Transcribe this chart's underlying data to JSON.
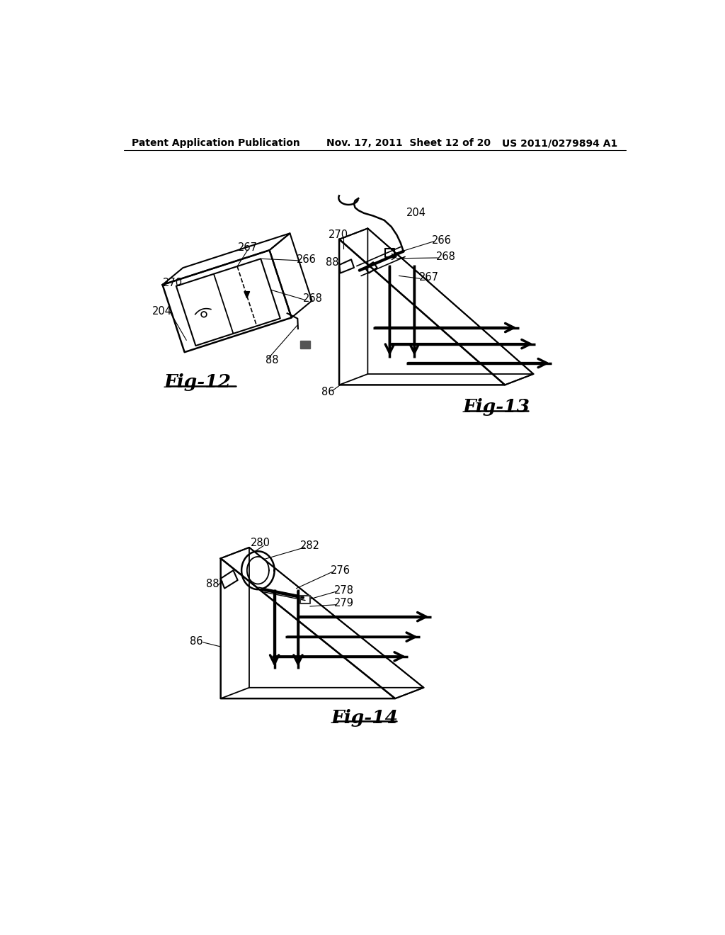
{
  "background_color": "#ffffff",
  "header_left": "Patent Application Publication",
  "header_mid": "Nov. 17, 2011  Sheet 12 of 20",
  "header_right": "US 2011/0279894 A1",
  "fig12_label": "Fig-12",
  "fig13_label": "Fig-13",
  "fig14_label": "Fig-14",
  "line_color": "#000000",
  "text_color": "#000000"
}
